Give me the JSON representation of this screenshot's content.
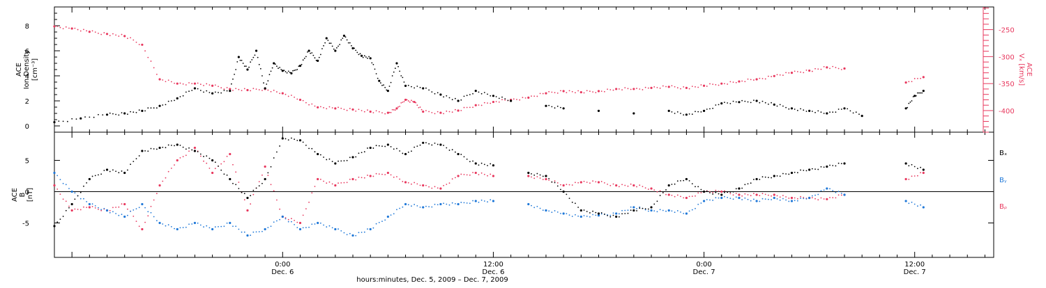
{
  "colors": {
    "black": "#000000",
    "pink": "#e8385e",
    "blue": "#1f78d8",
    "axis": "#000000"
  },
  "x_axis": {
    "label": "hours:minutes, Dec. 5, 2009 – Dec. 7, 2009",
    "start_hours": -13,
    "end_hours": 40.5,
    "ticks": [
      {
        "hours": 0,
        "time": "0:00",
        "date": "Dec. 6"
      },
      {
        "hours": 12,
        "time": "12:00",
        "date": "Dec. 6"
      },
      {
        "hours": 24,
        "time": "0:00",
        "date": "Dec. 7"
      },
      {
        "hours": 36,
        "time": "12:00",
        "date": "Dec. 7"
      }
    ]
  },
  "chart_data": [
    {
      "type": "scatter",
      "panel": "top",
      "ylabel_left": [
        "ACE",
        "Ion Density",
        "[cm⁻³]"
      ],
      "ylabel_right": [
        "ACE",
        "Vₓ [km/s]"
      ],
      "ylim_left": [
        -0.5,
        9.5
      ],
      "ylim_right": [
        -440,
        -208
      ],
      "yticks_left": [
        "0",
        "2",
        "4",
        "6",
        "8"
      ],
      "yticks_right": [
        "-250",
        "-300",
        "-350",
        "-400"
      ],
      "series": [
        {
          "axis": "left",
          "color": "#000000",
          "points": [
            [
              -13,
              0.3
            ],
            [
              -11.5,
              0.6
            ],
            [
              -10,
              0.9
            ],
            [
              -9,
              1.0
            ],
            [
              -8,
              1.2
            ],
            [
              -7,
              1.6
            ],
            [
              -6,
              2.2
            ],
            [
              -5,
              3.0
            ],
            [
              -4,
              2.6
            ],
            [
              -3,
              2.8
            ],
            [
              -2.5,
              5.5
            ],
            [
              -2,
              4.5
            ],
            [
              -1.5,
              6.0
            ],
            [
              -1,
              3.0
            ],
            [
              -0.5,
              5.0
            ],
            [
              0,
              4.4
            ],
            [
              0.5,
              4.2
            ],
            [
              1,
              4.8
            ],
            [
              1.5,
              6.0
            ],
            [
              2,
              5.2
            ],
            [
              2.5,
              7.0
            ],
            [
              3,
              6.0
            ],
            [
              3.5,
              7.2
            ],
            [
              4,
              6.2
            ],
            [
              4.5,
              5.6
            ],
            [
              5,
              5.4
            ],
            [
              5.5,
              3.6
            ],
            [
              6,
              2.8
            ],
            [
              6.5,
              5.0
            ],
            [
              7,
              3.2
            ],
            [
              8,
              3.0
            ],
            [
              9,
              2.5
            ],
            [
              10,
              2.0
            ],
            [
              11,
              2.8
            ],
            [
              12,
              2.4
            ],
            [
              13,
              2.0
            ],
            [
              15,
              1.6
            ],
            [
              16,
              1.4
            ],
            [
              18,
              1.2
            ],
            [
              20,
              1.0
            ],
            [
              22,
              1.2
            ],
            [
              23,
              0.9
            ],
            [
              24,
              1.2
            ],
            [
              25,
              1.8
            ],
            [
              26,
              1.9
            ],
            [
              27,
              2.0
            ],
            [
              28,
              1.7
            ],
            [
              29,
              1.4
            ],
            [
              30,
              1.2
            ],
            [
              31,
              1.0
            ],
            [
              32,
              1.4
            ],
            [
              33,
              0.8
            ],
            [
              35.5,
              1.4
            ],
            [
              36,
              2.4
            ],
            [
              36.5,
              2.8
            ]
          ]
        },
        {
          "axis": "right",
          "color": "#e8385e",
          "points": [
            [
              -13,
              -244
            ],
            [
              -12,
              -248
            ],
            [
              -11,
              -254
            ],
            [
              -10,
              -258
            ],
            [
              -9,
              -262
            ],
            [
              -8,
              -278
            ],
            [
              -7,
              -342
            ],
            [
              -6,
              -350
            ],
            [
              -5,
              -350
            ],
            [
              -4,
              -354
            ],
            [
              -3,
              -360
            ],
            [
              -2,
              -362
            ],
            [
              -1,
              -360
            ],
            [
              0,
              -368
            ],
            [
              1,
              -380
            ],
            [
              2,
              -394
            ],
            [
              3,
              -396
            ],
            [
              4,
              -398
            ],
            [
              5,
              -402
            ],
            [
              6,
              -404
            ],
            [
              6.5,
              -396
            ],
            [
              7,
              -380
            ],
            [
              7.5,
              -384
            ],
            [
              8,
              -402
            ],
            [
              9,
              -404
            ],
            [
              10,
              -400
            ],
            [
              11,
              -390
            ],
            [
              12,
              -384
            ],
            [
              13,
              -380
            ],
            [
              14,
              -376
            ],
            [
              15,
              -368
            ],
            [
              16,
              -364
            ],
            [
              17,
              -366
            ],
            [
              18,
              -364
            ],
            [
              19,
              -360
            ],
            [
              20,
              -360
            ],
            [
              21,
              -358
            ],
            [
              22,
              -356
            ],
            [
              23,
              -358
            ],
            [
              24,
              -354
            ],
            [
              25,
              -350
            ],
            [
              26,
              -346
            ],
            [
              27,
              -342
            ],
            [
              28,
              -336
            ],
            [
              29,
              -330
            ],
            [
              30,
              -326
            ],
            [
              31,
              -320
            ],
            [
              32,
              -322
            ],
            [
              35.5,
              -348
            ],
            [
              36.5,
              -338
            ]
          ]
        }
      ]
    },
    {
      "type": "scatter",
      "panel": "bottom",
      "ylabel_left": [
        "ACE",
        "B",
        "[nT]"
      ],
      "ylim": [
        -10.5,
        9.5
      ],
      "yticks": [
        "5",
        "0",
        "-5"
      ],
      "zero_line": true,
      "series": [
        {
          "name": "Bₓ",
          "color": "#000000",
          "points": [
            [
              -13,
              -5.5
            ],
            [
              -12,
              -2
            ],
            [
              -11,
              2
            ],
            [
              -10,
              3.5
            ],
            [
              -9,
              3
            ],
            [
              -8,
              6.5
            ],
            [
              -7,
              7
            ],
            [
              -6,
              7.5
            ],
            [
              -5,
              6.5
            ],
            [
              -4,
              5
            ],
            [
              -3,
              2
            ],
            [
              -2,
              -1
            ],
            [
              -1,
              2
            ],
            [
              0,
              8.5
            ],
            [
              1,
              8.2
            ],
            [
              2,
              6
            ],
            [
              3,
              4.5
            ],
            [
              4,
              5.5
            ],
            [
              5,
              7
            ],
            [
              6,
              7.5
            ],
            [
              7,
              6
            ],
            [
              8,
              7.8
            ],
            [
              9,
              7.5
            ],
            [
              10,
              6
            ],
            [
              11,
              4.5
            ],
            [
              12,
              4.2
            ],
            [
              14,
              3
            ],
            [
              15,
              2.5
            ],
            [
              16,
              0
            ],
            [
              17,
              -3
            ],
            [
              18,
              -3.5
            ],
            [
              19,
              -4
            ],
            [
              20,
              -3
            ],
            [
              21,
              -2.5
            ],
            [
              22,
              1
            ],
            [
              23,
              2
            ],
            [
              24,
              0
            ],
            [
              25,
              -0.5
            ],
            [
              26,
              0.5
            ],
            [
              27,
              2
            ],
            [
              28,
              2.5
            ],
            [
              29,
              3
            ],
            [
              30,
              3.5
            ],
            [
              31,
              4
            ],
            [
              32,
              4.5
            ],
            [
              35.5,
              4.5
            ],
            [
              36.5,
              3.5
            ]
          ]
        },
        {
          "name": "Bᵧ",
          "color": "#1f78d8",
          "points": [
            [
              -13,
              3
            ],
            [
              -12,
              0
            ],
            [
              -11,
              -2
            ],
            [
              -10,
              -3
            ],
            [
              -9,
              -4
            ],
            [
              -8,
              -2
            ],
            [
              -7,
              -5
            ],
            [
              -6,
              -6
            ],
            [
              -5,
              -5
            ],
            [
              -4,
              -6
            ],
            [
              -3,
              -5
            ],
            [
              -2,
              -7
            ],
            [
              -1,
              -6
            ],
            [
              0,
              -4
            ],
            [
              1,
              -6
            ],
            [
              2,
              -5
            ],
            [
              3,
              -6
            ],
            [
              4,
              -7
            ],
            [
              5,
              -6
            ],
            [
              6,
              -4
            ],
            [
              7,
              -2
            ],
            [
              8,
              -2.5
            ],
            [
              9,
              -2
            ],
            [
              10,
              -2
            ],
            [
              11,
              -1.5
            ],
            [
              12,
              -1.5
            ],
            [
              14,
              -2
            ],
            [
              15,
              -3
            ],
            [
              16,
              -3.5
            ],
            [
              17,
              -4
            ],
            [
              18,
              -3.8
            ],
            [
              19,
              -3.5
            ],
            [
              20,
              -2.5
            ],
            [
              21,
              -3
            ],
            [
              22,
              -3
            ],
            [
              23,
              -3.5
            ],
            [
              24,
              -1.5
            ],
            [
              25,
              -1
            ],
            [
              26,
              -1
            ],
            [
              27,
              -1.5
            ],
            [
              28,
              -1
            ],
            [
              29,
              -1.5
            ],
            [
              30,
              -1
            ],
            [
              31,
              0.5
            ],
            [
              32,
              -0.5
            ],
            [
              35.5,
              -1.5
            ],
            [
              36.5,
              -2.5
            ]
          ]
        },
        {
          "name": "Bᵨ",
          "color": "#e8385e",
          "points": [
            [
              -13,
              1
            ],
            [
              -12,
              -3
            ],
            [
              -11,
              -2.5
            ],
            [
              -10,
              -3
            ],
            [
              -9,
              -2
            ],
            [
              -8,
              -6
            ],
            [
              -7,
              1
            ],
            [
              -6,
              5
            ],
            [
              -5,
              7
            ],
            [
              -4,
              3
            ],
            [
              -3,
              6
            ],
            [
              -2,
              -3
            ],
            [
              -1,
              4
            ],
            [
              0,
              -4
            ],
            [
              1,
              -5
            ],
            [
              2,
              2
            ],
            [
              3,
              1
            ],
            [
              4,
              2
            ],
            [
              5,
              2.5
            ],
            [
              6,
              3
            ],
            [
              7,
              1.5
            ],
            [
              8,
              1
            ],
            [
              9,
              0.5
            ],
            [
              10,
              2.5
            ],
            [
              11,
              3
            ],
            [
              12,
              2.5
            ],
            [
              14,
              2.5
            ],
            [
              15,
              2
            ],
            [
              16,
              1
            ],
            [
              17,
              1.5
            ],
            [
              18,
              1.5
            ],
            [
              19,
              1
            ],
            [
              20,
              1
            ],
            [
              21,
              0.5
            ],
            [
              22,
              -0.5
            ],
            [
              23,
              -1
            ],
            [
              24,
              0
            ],
            [
              25,
              0
            ],
            [
              26,
              -0.5
            ],
            [
              27,
              -0.5
            ],
            [
              28,
              -0.5
            ],
            [
              29,
              -1
            ],
            [
              30,
              -1
            ],
            [
              31,
              -1.2
            ],
            [
              32,
              -0.5
            ],
            [
              35.5,
              2
            ],
            [
              36.5,
              3
            ]
          ]
        }
      ]
    }
  ]
}
